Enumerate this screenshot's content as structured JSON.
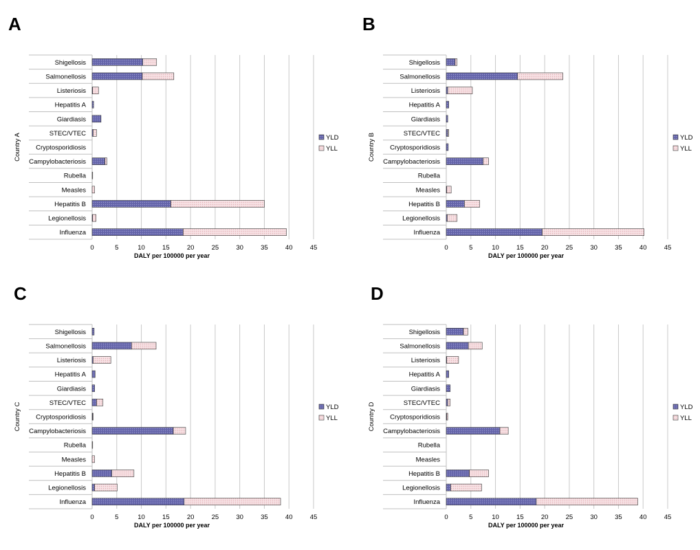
{
  "colors": {
    "yld": "#6b6bb0",
    "yll": "#f4d9dc",
    "grid": "#c8c8c8",
    "axis": "#bfbfbf"
  },
  "chart_data": [
    {
      "type": "bar",
      "stacked": true,
      "orientation": "horizontal",
      "panel_label": "A",
      "categories": [
        "Shigellosis",
        "Salmonellosis",
        "Listeriosis",
        "Hepatitis A",
        "Giardiasis",
        "STEC/VTEC",
        "Cryptosporidiosis",
        "Campylobacteriosis",
        "Rubella",
        "Measles",
        "Hepatitis B",
        "Legionellosis",
        "Influenza"
      ],
      "series": [
        {
          "name": "YLD",
          "values": [
            10.3,
            10.2,
            0.1,
            0.3,
            1.8,
            0.2,
            0,
            2.6,
            0,
            0,
            16,
            0.1,
            18.5
          ]
        },
        {
          "name": "YLL",
          "values": [
            2.8,
            6.4,
            1.2,
            0,
            0,
            0.7,
            0,
            0.4,
            0.1,
            0.5,
            19,
            0.7,
            21
          ]
        }
      ],
      "xlabel": "DALY per 100000 per year",
      "ylabel": "Country A",
      "xlim": [
        0,
        45
      ],
      "xticks": [
        0,
        5,
        10,
        15,
        20,
        25,
        30,
        35,
        40,
        45
      ],
      "grid": "vertical",
      "legend_position": "right"
    },
    {
      "type": "bar",
      "stacked": true,
      "orientation": "horizontal",
      "panel_label": "B",
      "categories": [
        "Shigellosis",
        "Salmonellosis",
        "Listeriosis",
        "Hepatitis A",
        "Giardiasis",
        "STEC/VTEC",
        "Cryptosporidiosis",
        "Campylobacteriosis",
        "Rubella",
        "Measles",
        "Hepatitis B",
        "Legionellosis",
        "Influenza"
      ],
      "series": [
        {
          "name": "YLD",
          "values": [
            1.8,
            14.5,
            0.3,
            0.5,
            0.3,
            0.3,
            0.4,
            7.5,
            0,
            0.1,
            3.7,
            0.2,
            19.5
          ]
        },
        {
          "name": "YLL",
          "values": [
            0.4,
            9.2,
            5.0,
            0,
            0,
            0.2,
            0,
            1.1,
            0,
            0.9,
            3.1,
            2.0,
            20.7
          ]
        }
      ],
      "xlabel": "DALY per 100000 per year",
      "ylabel": "Country B",
      "xlim": [
        0,
        45
      ],
      "xticks": [
        0,
        5,
        10,
        15,
        20,
        25,
        30,
        35,
        40,
        45
      ],
      "grid": "vertical",
      "legend_position": "right"
    },
    {
      "type": "bar",
      "stacked": true,
      "orientation": "horizontal",
      "panel_label": "C",
      "categories": [
        "Shigellosis",
        "Salmonellosis",
        "Listeriosis",
        "Hepatitis A",
        "Giardiasis",
        "STEC/VTEC",
        "Cryptosporidiosis",
        "Campylobacteriosis",
        "Rubella",
        "Measles",
        "Hepatitis B",
        "Legionellosis",
        "Influenza"
      ],
      "series": [
        {
          "name": "YLD",
          "values": [
            0.4,
            8.0,
            0.2,
            0.6,
            0.5,
            0.9,
            0.1,
            16.5,
            0,
            0,
            4.0,
            0.5,
            18.7
          ]
        },
        {
          "name": "YLL",
          "values": [
            0,
            5.0,
            3.6,
            0,
            0,
            1.3,
            0.1,
            2.5,
            0.1,
            0.5,
            4.5,
            4.6,
            19.6
          ]
        }
      ],
      "xlabel": "DALY per 100000 per year",
      "ylabel": "Country C",
      "xlim": [
        0,
        45
      ],
      "xticks": [
        0,
        5,
        10,
        15,
        20,
        25,
        30,
        35,
        40,
        45
      ],
      "grid": "vertical",
      "legend_position": "right"
    },
    {
      "type": "bar",
      "stacked": true,
      "orientation": "horizontal",
      "panel_label": "D",
      "categories": [
        "Shigellosis",
        "Salmonellosis",
        "Listeriosis",
        "Hepatitis A",
        "Giardiasis",
        "STEC/VTEC",
        "Cryptosporidiosis",
        "Campylobacteriosis",
        "Rubella",
        "Measles",
        "Hepatitis B",
        "Legionellosis",
        "Influenza"
      ],
      "series": [
        {
          "name": "YLD",
          "values": [
            3.5,
            4.5,
            0.1,
            0.5,
            0.8,
            0.3,
            0.1,
            10.9,
            0,
            0,
            4.7,
            0.9,
            18.3
          ]
        },
        {
          "name": "YLL",
          "values": [
            0.9,
            2.8,
            2.4,
            0,
            0,
            0.5,
            0.2,
            1.7,
            0,
            0,
            3.9,
            6.3,
            20.6
          ]
        }
      ],
      "xlabel": "DALY per 100000 per year",
      "ylabel": "Country D",
      "xlim": [
        0,
        45
      ],
      "xticks": [
        0,
        5,
        10,
        15,
        20,
        25,
        30,
        35,
        40,
        45
      ],
      "grid": "vertical",
      "legend_position": "right"
    }
  ]
}
